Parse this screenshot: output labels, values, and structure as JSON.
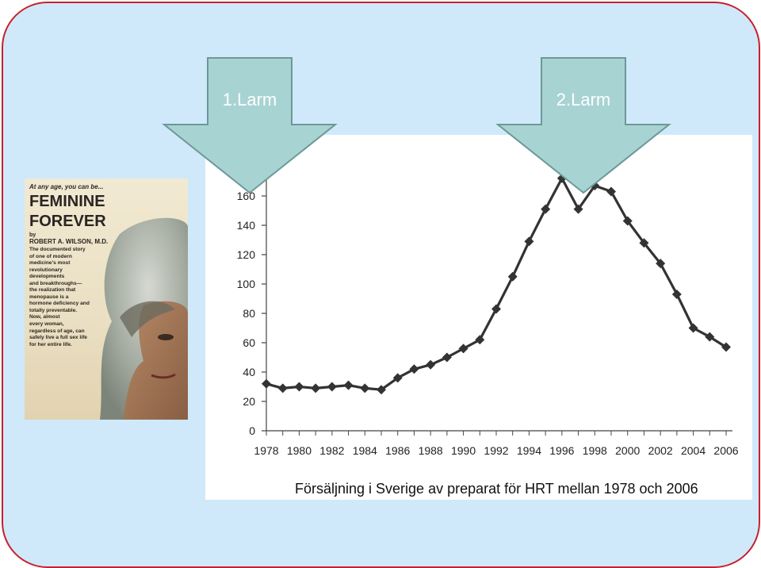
{
  "book": {
    "tagline": "At any age, you can be...",
    "title_line1": "FEMININE",
    "title_line2": "FOREVER",
    "by": "by",
    "author": "ROBERT A. WILSON, M.D.",
    "description": [
      "The documented story",
      "of one of modern",
      "medicine's most",
      "revolutionary",
      "developments",
      "and breakthroughs—",
      "the realization that",
      "menopause is a",
      "hormone deficiency and",
      "totally preventable.",
      "Now, almost",
      "every woman,",
      "regardless of age, can",
      "safely live a full sex life",
      "for her entire life."
    ]
  },
  "arrows": [
    {
      "label": "1.Larm"
    },
    {
      "label": "2.Larm"
    }
  ],
  "colors": {
    "slide_background": "#cfe9fa",
    "slide_border": "#c8202c",
    "arrow_fill": "#a8d3d3",
    "arrow_stroke": "#6d9898",
    "line": "#333333"
  },
  "caption": "Försäljning i Sverige av preparat för HRT mellan 1978 och 2006",
  "chart_data": {
    "type": "line",
    "title": "",
    "xlabel": "",
    "ylabel": "",
    "xlim": [
      1978,
      2006
    ],
    "ylim": [
      0,
      180
    ],
    "xticks": [
      1978,
      1980,
      1982,
      1984,
      1986,
      1988,
      1990,
      1992,
      1994,
      1996,
      1998,
      2000,
      2002,
      2004,
      2006
    ],
    "yticks": [
      0,
      20,
      40,
      60,
      80,
      100,
      120,
      140,
      160
    ],
    "grid": false,
    "series": [
      {
        "marker": "diamond",
        "x": [
          1978,
          1979,
          1980,
          1981,
          1982,
          1983,
          1984,
          1985,
          1986,
          1987,
          1988,
          1989,
          1990,
          1991,
          1992,
          1993,
          1994,
          1995,
          1996,
          1997,
          1998,
          1999,
          2000,
          2001,
          2002,
          2003,
          2004,
          2005,
          2006
        ],
        "values": [
          32,
          29,
          30,
          29,
          30,
          31,
          29,
          28,
          36,
          42,
          45,
          50,
          56,
          62,
          83,
          105,
          129,
          151,
          172,
          151,
          167,
          163,
          143,
          128,
          114,
          93,
          70,
          64,
          57
        ]
      }
    ]
  }
}
